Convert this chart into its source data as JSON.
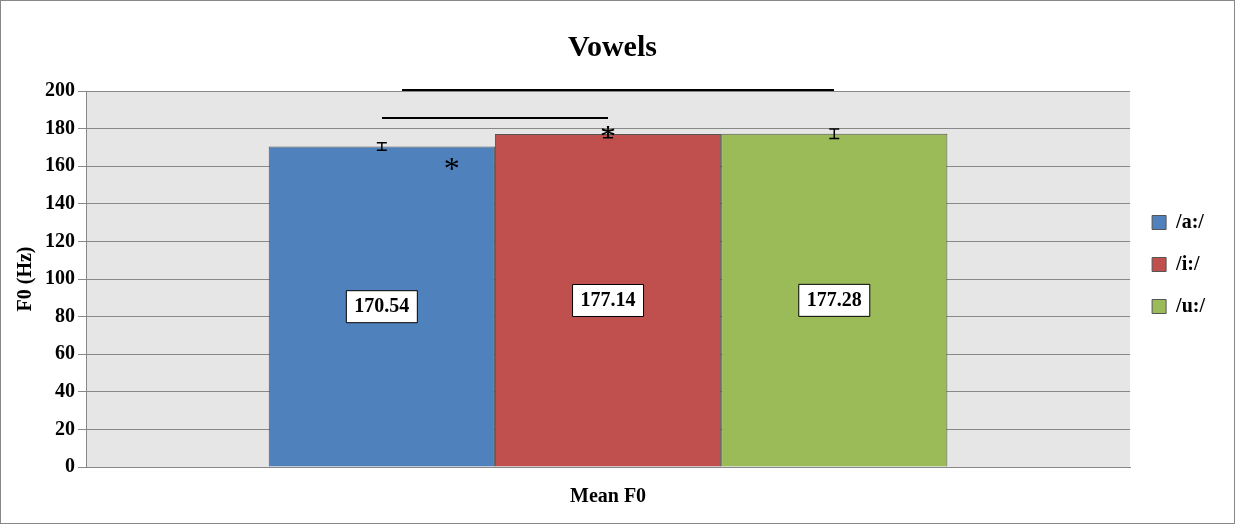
{
  "chart_data": {
    "type": "bar",
    "title": "Vowels",
    "ylabel": "F0 (Hz)",
    "categories": [
      "Mean F0"
    ],
    "series": [
      {
        "name": "/a:/",
        "color": "#4f81bd",
        "values": [
          170.54
        ],
        "errors": [
          2
        ]
      },
      {
        "name": "/i:/",
        "color": "#c0504d",
        "values": [
          177.14
        ],
        "errors": [
          2
        ]
      },
      {
        "name": "/u:/",
        "color": "#9bbb59",
        "values": [
          177.28
        ],
        "errors": [
          2.5
        ]
      }
    ],
    "ylim": [
      0,
      200
    ],
    "yticks": [
      0,
      20,
      40,
      60,
      80,
      100,
      120,
      140,
      160,
      180,
      200
    ],
    "grid": "y",
    "legend": "right",
    "data_labels": true,
    "annotations": [
      "*",
      "*"
    ]
  }
}
